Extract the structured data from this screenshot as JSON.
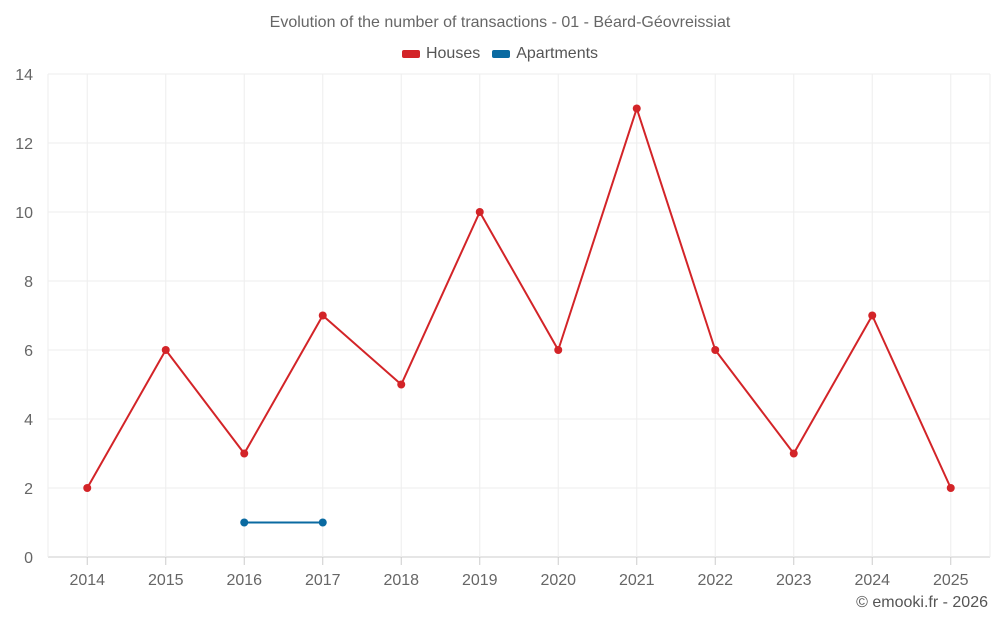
{
  "chart_data": {
    "type": "line",
    "title": "Evolution of the number of transactions - 01 - Béard-Géovreissiat",
    "categories": [
      "2014",
      "2015",
      "2016",
      "2017",
      "2018",
      "2019",
      "2020",
      "2021",
      "2022",
      "2023",
      "2024",
      "2025"
    ],
    "ylim": [
      0,
      14
    ],
    "yticks": [
      0,
      2,
      4,
      6,
      8,
      10,
      12,
      14
    ],
    "xlabel": "",
    "ylabel": "",
    "grid": true,
    "legend_position": "top-center",
    "series": [
      {
        "name": "Houses",
        "color": "#d32428",
        "values": [
          2,
          6,
          3,
          7,
          5,
          10,
          6,
          13,
          6,
          3,
          7,
          2
        ]
      },
      {
        "name": "Apartments",
        "color": "#0a6aa1",
        "values": [
          null,
          null,
          1,
          1,
          null,
          null,
          null,
          null,
          null,
          null,
          null,
          null
        ]
      }
    ]
  },
  "credit": "© emooki.fr - 2026"
}
